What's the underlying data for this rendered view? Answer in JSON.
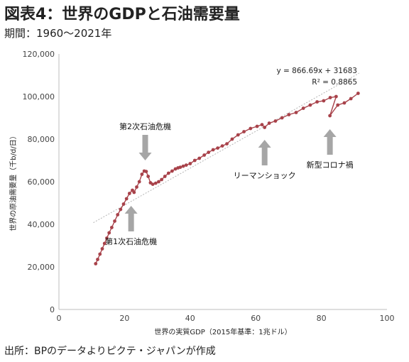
{
  "header": {
    "title": "図表4：世界のGDPと石油需要量",
    "period": "期間：1960～2021年"
  },
  "footer": {
    "source": "出所：BPのデータよりピクテ・ジャパンが作成"
  },
  "colors": {
    "series": "#a8424a",
    "trend": "#b5b5b5",
    "arrow": "#a6a6a6"
  },
  "chart_data": {
    "type": "scatter",
    "xlabel": "世界の実質GDP（2015年基準：1兆ドル）",
    "ylabel": "世界の原油需要量（千b/d/日）",
    "xlim": [
      0,
      100
    ],
    "ylim": [
      0,
      120000
    ],
    "x_ticks": [
      "0",
      "20",
      "40",
      "60",
      "80",
      "100"
    ],
    "y_ticks": [
      "0",
      "20,000",
      "40,000",
      "60,000",
      "80,000",
      "100,000",
      "120,000"
    ],
    "grid": false,
    "trendline": {
      "equation": "y = 866.69x + 31683",
      "r2": "R² = 0.8865",
      "slope": 866.69,
      "intercept": 31683
    },
    "points": [
      [
        11.2,
        21500
      ],
      [
        11.8,
        23500
      ],
      [
        12.5,
        26000
      ],
      [
        13.2,
        28500
      ],
      [
        13.9,
        31000
      ],
      [
        14.6,
        33500
      ],
      [
        15.3,
        36000
      ],
      [
        16.1,
        38500
      ],
      [
        17.0,
        41500
      ],
      [
        17.9,
        44500
      ],
      [
        18.8,
        47000
      ],
      [
        19.7,
        49500
      ],
      [
        20.6,
        52000
      ],
      [
        21.5,
        54500
      ],
      [
        22.4,
        56000
      ],
      [
        22.9,
        55000
      ],
      [
        23.7,
        57500
      ],
      [
        24.5,
        60000
      ],
      [
        25.3,
        63500
      ],
      [
        26.0,
        65000
      ],
      [
        26.6,
        64800
      ],
      [
        27.2,
        62500
      ],
      [
        27.9,
        59500
      ],
      [
        28.6,
        58800
      ],
      [
        29.5,
        59300
      ],
      [
        30.4,
        60000
      ],
      [
        31.3,
        61000
      ],
      [
        32.3,
        62500
      ],
      [
        33.4,
        64000
      ],
      [
        34.5,
        65000
      ],
      [
        35.5,
        66000
      ],
      [
        36.3,
        66500
      ],
      [
        37.0,
        66800
      ],
      [
        37.9,
        67300
      ],
      [
        38.8,
        67800
      ],
      [
        40.0,
        68500
      ],
      [
        41.4,
        70000
      ],
      [
        42.8,
        71000
      ],
      [
        44.3,
        72500
      ],
      [
        45.6,
        73800
      ],
      [
        47.0,
        75000
      ],
      [
        48.4,
        75800
      ],
      [
        49.8,
        76800
      ],
      [
        51.2,
        77800
      ],
      [
        52.8,
        80000
      ],
      [
        54.6,
        82000
      ],
      [
        56.4,
        83500
      ],
      [
        58.4,
        85000
      ],
      [
        60.4,
        86000
      ],
      [
        61.9,
        86800
      ],
      [
        62.7,
        85500
      ],
      [
        64.1,
        87500
      ],
      [
        66.0,
        88500
      ],
      [
        68.0,
        90000
      ],
      [
        70.1,
        91500
      ],
      [
        72.3,
        92500
      ],
      [
        74.5,
        94500
      ],
      [
        76.6,
        96000
      ],
      [
        78.7,
        97500
      ],
      [
        80.7,
        98000
      ],
      [
        82.7,
        99500
      ],
      [
        84.5,
        100000
      ],
      [
        82.6,
        91000
      ],
      [
        85.0,
        96000
      ],
      [
        87.0,
        97000
      ],
      [
        89.0,
        99000
      ],
      [
        91.2,
        101500
      ]
    ],
    "annotations": [
      {
        "text": "第2次石油危機",
        "arrow": "down",
        "x": 26.3,
        "y": 66000
      },
      {
        "text": "第1次石油危機",
        "arrow": "up",
        "x": 22.0,
        "y": 52000
      },
      {
        "text": "リーマンショック",
        "arrow": "up",
        "x": 62.7,
        "y": 83000
      },
      {
        "text": "新型コロナ禍",
        "arrow": "up",
        "x": 82.6,
        "y": 88000
      }
    ]
  }
}
